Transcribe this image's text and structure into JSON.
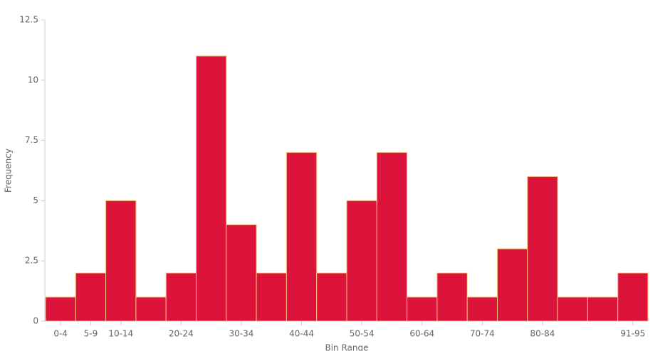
{
  "chart_data": {
    "type": "bar",
    "categories": [
      "0-4",
      "5-9",
      "10-14",
      null,
      "20-24",
      null,
      "30-34",
      null,
      "40-44",
      null,
      "50-54",
      null,
      "60-64",
      null,
      "70-74",
      null,
      "80-84",
      null,
      null,
      "91-95"
    ],
    "values": [
      1,
      2,
      5,
      1,
      2,
      11,
      4,
      2,
      7,
      2,
      5,
      7,
      1,
      2,
      1,
      3,
      6,
      1,
      1,
      2
    ],
    "color": "#dc143c",
    "ylim": [
      0,
      12.5
    ],
    "yticks": [
      0,
      2.5,
      5,
      7.5,
      10,
      12.5
    ],
    "x_label": "Bin Range",
    "y_label": "Frequency",
    "grid": false
  }
}
